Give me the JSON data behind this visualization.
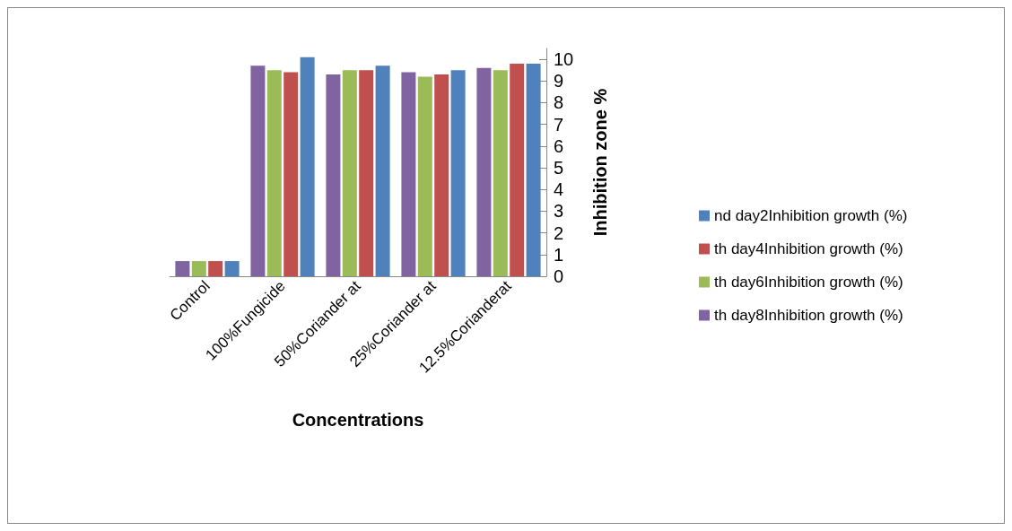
{
  "chart_data": {
    "type": "bar",
    "xlabel": "Concentrations",
    "ylabel": "Inhibition zone %",
    "categories": [
      "Control",
      "100%Fungicide",
      "50%Coriander at",
      "25%Coriander at",
      "12.5%Corianderat"
    ],
    "series": [
      {
        "name": "nd day2Inhibition growth (%)",
        "color": "#4f81bd",
        "values": [
          0.7,
          10.1,
          9.7,
          9.5,
          9.8
        ]
      },
      {
        "name": "th day4Inhibition growth (%)",
        "color": "#c0504d",
        "values": [
          0.7,
          9.4,
          9.5,
          9.3,
          9.8
        ]
      },
      {
        "name": "th day6Inhibition growth (%)",
        "color": "#9bbb59",
        "values": [
          0.7,
          9.5,
          9.5,
          9.2,
          9.5
        ]
      },
      {
        "name": "th day8Inhibition growth (%)",
        "color": "#8064a2",
        "values": [
          0.7,
          9.7,
          9.3,
          9.4,
          9.6
        ]
      }
    ],
    "ylim": [
      0,
      10.5
    ],
    "yticks": [
      0,
      1,
      2,
      3,
      4,
      5,
      6,
      7,
      8,
      9,
      10
    ],
    "grid": false,
    "legend": "right"
  }
}
